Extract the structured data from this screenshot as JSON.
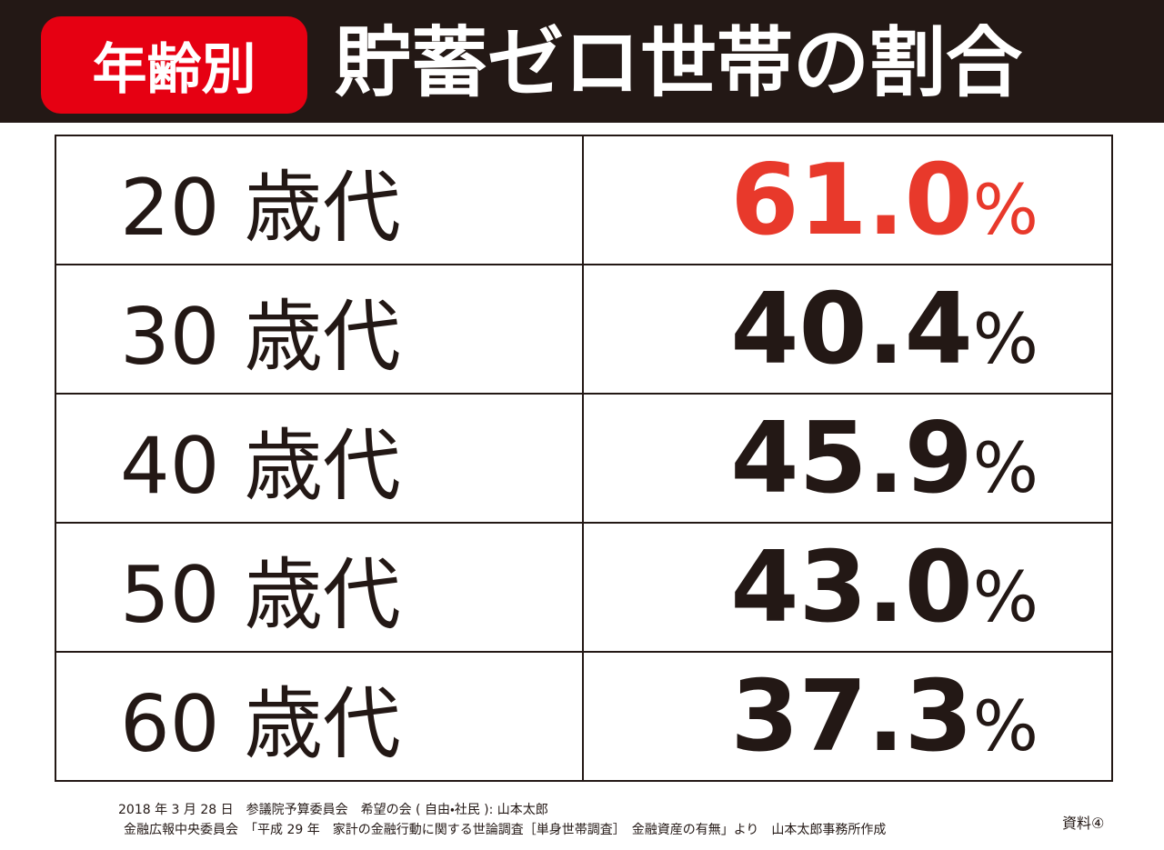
{
  "header": {
    "badge": "年齢別",
    "title": "貯蓄ゼロ世帯の割合"
  },
  "table": {
    "rows": [
      {
        "age": "20 歳代",
        "value": "61.0",
        "unit": "%",
        "color": "#e8392b"
      },
      {
        "age": "30 歳代",
        "value": "40.4",
        "unit": "%",
        "color": "#231815"
      },
      {
        "age": "40 歳代",
        "value": "45.9",
        "unit": "%",
        "color": "#231815"
      },
      {
        "age": "50 歳代",
        "value": "43.0",
        "unit": "%",
        "color": "#231815"
      },
      {
        "age": "60 歳代",
        "value": "37.3",
        "unit": "%",
        "color": "#231815"
      }
    ]
  },
  "footer": {
    "lines": [
      "2018 年 3 月 28 日　参議院予算委員会　希望の会 ( 自由・社民 ): 山本太郎",
      "金融広報中央委員会　「平成 29 年　家計の金融行動に関する世論調査［単身世帯調査］　金融資産の有無」より　山本太郎事務所作成"
    ],
    "note": "資料④"
  }
}
